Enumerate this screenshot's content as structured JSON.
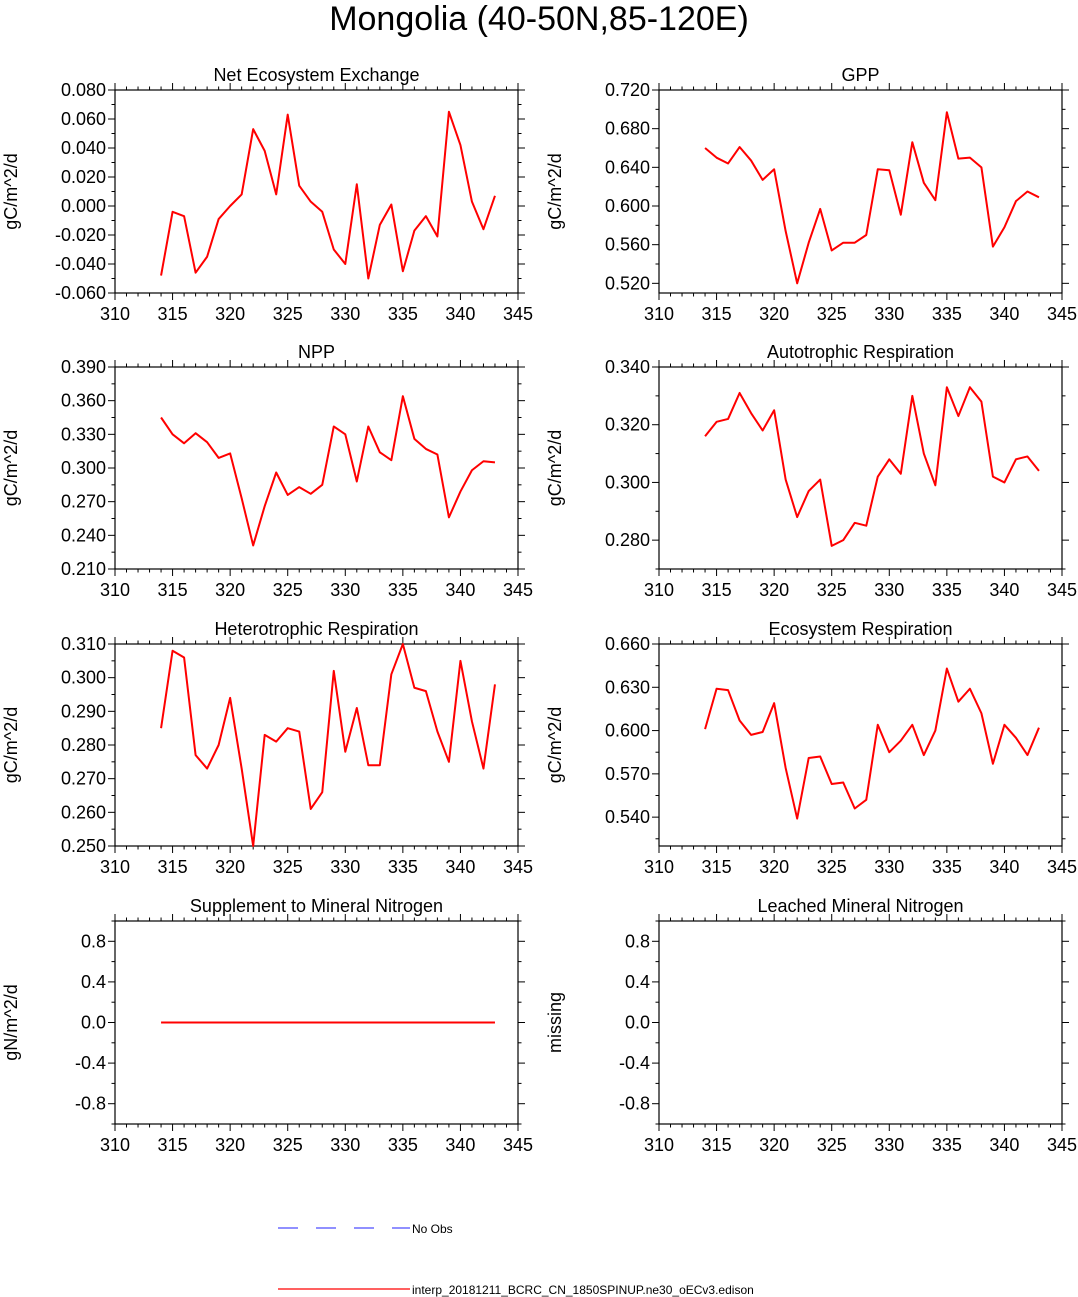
{
  "figure": {
    "title": "Mongolia (40-50N,85-120E)",
    "legend": [
      {
        "label": "No Obs",
        "color": "#4d4dff",
        "style": "dashed"
      },
      {
        "label": "interp_20181211_BCRC_CN_1850SPINUP.ne30_oECv3.edison",
        "color": "#ff0000",
        "style": "solid"
      }
    ]
  },
  "chart_data": [
    {
      "type": "line",
      "title": "Net Ecosystem Exchange",
      "ylabel": "gC/m^2/d",
      "xlim": [
        310,
        345
      ],
      "xticks": [
        "310",
        "315",
        "320",
        "325",
        "330",
        "335",
        "340",
        "345"
      ],
      "ylim": [
        -0.06,
        0.08
      ],
      "yticks": [
        "-0.060",
        "-0.040",
        "-0.020",
        "0.000",
        "0.020",
        "0.040",
        "0.060",
        "0.080"
      ],
      "series": [
        {
          "name": "interp_20181211_BCRC_CN_1850SPINUP.ne30_oECv3.edison",
          "color": "#ff0000",
          "x": [
            314,
            315,
            316,
            317,
            318,
            319,
            320,
            321,
            322,
            323,
            324,
            325,
            326,
            327,
            328,
            329,
            330,
            331,
            332,
            333,
            334,
            335,
            336,
            337,
            338,
            339,
            340,
            341,
            342,
            343
          ],
          "y": [
            -0.048,
            -0.004,
            -0.007,
            -0.046,
            -0.035,
            -0.009,
            0.0,
            0.008,
            0.053,
            0.038,
            0.008,
            0.063,
            0.014,
            0.003,
            -0.004,
            -0.03,
            -0.04,
            0.015,
            -0.05,
            -0.013,
            0.001,
            -0.045,
            -0.017,
            -0.007,
            -0.021,
            0.065,
            0.042,
            0.003,
            -0.016,
            0.007
          ]
        }
      ]
    },
    {
      "type": "line",
      "title": "GPP",
      "ylabel": "gC/m^2/d",
      "xlim": [
        310,
        345
      ],
      "xticks": [
        "310",
        "315",
        "320",
        "325",
        "330",
        "335",
        "340",
        "345"
      ],
      "ylim": [
        0.51,
        0.72
      ],
      "yticks": [
        "0.520",
        "0.560",
        "0.600",
        "0.640",
        "0.680",
        "0.720"
      ],
      "series": [
        {
          "name": "interp_20181211_BCRC_CN_1850SPINUP.ne30_oECv3.edison",
          "color": "#ff0000",
          "x": [
            314,
            315,
            316,
            317,
            318,
            319,
            320,
            321,
            322,
            323,
            324,
            325,
            326,
            327,
            328,
            329,
            330,
            331,
            332,
            333,
            334,
            335,
            336,
            337,
            338,
            339,
            340,
            341,
            342,
            343
          ],
          "y": [
            0.66,
            0.65,
            0.644,
            0.661,
            0.647,
            0.627,
            0.638,
            0.574,
            0.52,
            0.562,
            0.597,
            0.554,
            0.562,
            0.562,
            0.57,
            0.638,
            0.637,
            0.591,
            0.666,
            0.624,
            0.606,
            0.697,
            0.649,
            0.65,
            0.64,
            0.558,
            0.578,
            0.605,
            0.615,
            0.609
          ]
        }
      ]
    },
    {
      "type": "line",
      "title": "NPP",
      "ylabel": "gC/m^2/d",
      "xlim": [
        310,
        345
      ],
      "xticks": [
        "310",
        "315",
        "320",
        "325",
        "330",
        "335",
        "340",
        "345"
      ],
      "ylim": [
        0.21,
        0.39
      ],
      "yticks": [
        "0.210",
        "0.240",
        "0.270",
        "0.300",
        "0.330",
        "0.360",
        "0.390"
      ],
      "series": [
        {
          "name": "interp_20181211_BCRC_CN_1850SPINUP.ne30_oECv3.edison",
          "color": "#ff0000",
          "x": [
            314,
            315,
            316,
            317,
            318,
            319,
            320,
            321,
            322,
            323,
            324,
            325,
            326,
            327,
            328,
            329,
            330,
            331,
            332,
            333,
            334,
            335,
            336,
            337,
            338,
            339,
            340,
            341,
            342,
            343
          ],
          "y": [
            0.345,
            0.33,
            0.322,
            0.331,
            0.323,
            0.309,
            0.313,
            0.273,
            0.231,
            0.266,
            0.296,
            0.276,
            0.283,
            0.277,
            0.285,
            0.337,
            0.33,
            0.288,
            0.337,
            0.314,
            0.307,
            0.364,
            0.326,
            0.317,
            0.312,
            0.256,
            0.279,
            0.298,
            0.306,
            0.305
          ]
        }
      ]
    },
    {
      "type": "line",
      "title": "Autotrophic Respiration",
      "ylabel": "gC/m^2/d",
      "xlim": [
        310,
        345
      ],
      "xticks": [
        "310",
        "315",
        "320",
        "325",
        "330",
        "335",
        "340",
        "345"
      ],
      "ylim": [
        0.27,
        0.34
      ],
      "yticks": [
        "0.280",
        "0.300",
        "0.320",
        "0.340"
      ],
      "series": [
        {
          "name": "interp_20181211_BCRC_CN_1850SPINUP.ne30_oECv3.edison",
          "color": "#ff0000",
          "x": [
            314,
            315,
            316,
            317,
            318,
            319,
            320,
            321,
            322,
            323,
            324,
            325,
            326,
            327,
            328,
            329,
            330,
            331,
            332,
            333,
            334,
            335,
            336,
            337,
            338,
            339,
            340,
            341,
            342,
            343
          ],
          "y": [
            0.316,
            0.321,
            0.322,
            0.331,
            0.324,
            0.318,
            0.325,
            0.301,
            0.288,
            0.297,
            0.301,
            0.278,
            0.28,
            0.286,
            0.285,
            0.302,
            0.308,
            0.303,
            0.33,
            0.31,
            0.299,
            0.333,
            0.323,
            0.333,
            0.328,
            0.302,
            0.3,
            0.308,
            0.309,
            0.304
          ]
        }
      ]
    },
    {
      "type": "line",
      "title": "Heterotrophic Respiration",
      "ylabel": "gC/m^2/d",
      "xlim": [
        310,
        345
      ],
      "xticks": [
        "310",
        "315",
        "320",
        "325",
        "330",
        "335",
        "340",
        "345"
      ],
      "ylim": [
        0.25,
        0.31
      ],
      "yticks": [
        "0.250",
        "0.260",
        "0.270",
        "0.280",
        "0.290",
        "0.300",
        "0.310"
      ],
      "series": [
        {
          "name": "interp_20181211_BCRC_CN_1850SPINUP.ne30_oECv3.edison",
          "color": "#ff0000",
          "x": [
            314,
            315,
            316,
            317,
            318,
            319,
            320,
            321,
            322,
            323,
            324,
            325,
            326,
            327,
            328,
            329,
            330,
            331,
            332,
            333,
            334,
            335,
            336,
            337,
            338,
            339,
            340,
            341,
            342,
            343
          ],
          "y": [
            0.285,
            0.308,
            0.306,
            0.277,
            0.273,
            0.28,
            0.294,
            0.273,
            0.25,
            0.283,
            0.281,
            0.285,
            0.284,
            0.261,
            0.266,
            0.302,
            0.278,
            0.291,
            0.274,
            0.274,
            0.301,
            0.31,
            0.297,
            0.296,
            0.284,
            0.275,
            0.305,
            0.287,
            0.273,
            0.298
          ]
        }
      ]
    },
    {
      "type": "line",
      "title": "Ecosystem Respiration",
      "ylabel": "gC/m^2/d",
      "xlim": [
        310,
        345
      ],
      "xticks": [
        "310",
        "315",
        "320",
        "325",
        "330",
        "335",
        "340",
        "345"
      ],
      "ylim": [
        0.52,
        0.66
      ],
      "yticks": [
        "0.540",
        "0.570",
        "0.600",
        "0.630",
        "0.660"
      ],
      "series": [
        {
          "name": "interp_20181211_BCRC_CN_1850SPINUP.ne30_oECv3.edison",
          "color": "#ff0000",
          "x": [
            314,
            315,
            316,
            317,
            318,
            319,
            320,
            321,
            322,
            323,
            324,
            325,
            326,
            327,
            328,
            329,
            330,
            331,
            332,
            333,
            334,
            335,
            336,
            337,
            338,
            339,
            340,
            341,
            342,
            343
          ],
          "y": [
            0.601,
            0.629,
            0.628,
            0.607,
            0.597,
            0.599,
            0.619,
            0.574,
            0.539,
            0.581,
            0.582,
            0.563,
            0.564,
            0.546,
            0.552,
            0.604,
            0.585,
            0.593,
            0.604,
            0.583,
            0.6,
            0.643,
            0.62,
            0.629,
            0.612,
            0.577,
            0.604,
            0.595,
            0.583,
            0.602
          ]
        }
      ]
    },
    {
      "type": "line",
      "title": "Supplement to Mineral Nitrogen",
      "ylabel": "gN/m^2/d",
      "xlim": [
        310,
        345
      ],
      "xticks": [
        "310",
        "315",
        "320",
        "325",
        "330",
        "335",
        "340",
        "345"
      ],
      "ylim": [
        -1.0,
        1.0
      ],
      "yticks": [
        "-0.8",
        "-0.4",
        "0.0",
        "0.4",
        "0.8"
      ],
      "series": [
        {
          "name": "interp_20181211_BCRC_CN_1850SPINUP.ne30_oECv3.edison",
          "color": "#ff0000",
          "x": [
            314,
            315,
            316,
            317,
            318,
            319,
            320,
            321,
            322,
            323,
            324,
            325,
            326,
            327,
            328,
            329,
            330,
            331,
            332,
            333,
            334,
            335,
            336,
            337,
            338,
            339,
            340,
            341,
            342,
            343
          ],
          "y": [
            0,
            0,
            0,
            0,
            0,
            0,
            0,
            0,
            0,
            0,
            0,
            0,
            0,
            0,
            0,
            0,
            0,
            0,
            0,
            0,
            0,
            0,
            0,
            0,
            0,
            0,
            0,
            0,
            0,
            0
          ]
        }
      ]
    },
    {
      "type": "line",
      "title": "Leached Mineral Nitrogen",
      "ylabel": "missing",
      "xlim": [
        310,
        345
      ],
      "xticks": [
        "310",
        "315",
        "320",
        "325",
        "330",
        "335",
        "340",
        "345"
      ],
      "ylim": [
        -1.0,
        1.0
      ],
      "yticks": [
        "-0.8",
        "-0.4",
        "0.0",
        "0.4",
        "0.8"
      ],
      "series": []
    }
  ]
}
